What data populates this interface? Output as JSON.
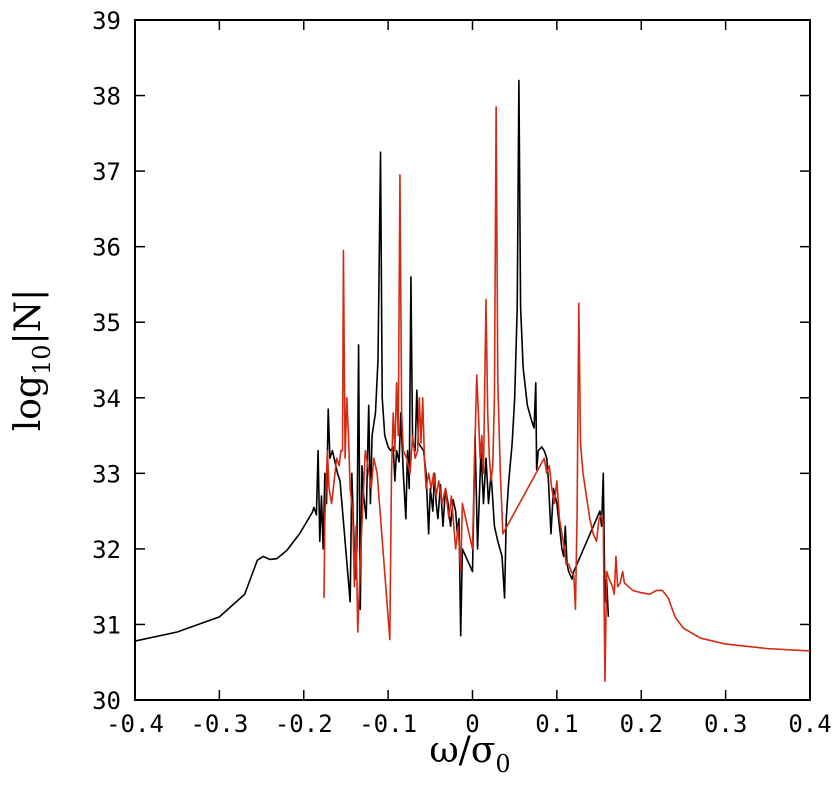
{
  "chart_data": {
    "type": "line",
    "xlabel": "ω/σ",
    "xlabel_subscript": "0",
    "ylabel_prefix": "log",
    "ylabel_subscript": "10",
    "ylabel_suffix": "|N|",
    "xlim": [
      -0.4,
      0.4
    ],
    "ylim": [
      30,
      39
    ],
    "x_ticks": [
      -0.4,
      -0.3,
      -0.2,
      -0.1,
      0,
      0.1,
      0.2,
      0.3,
      0.4
    ],
    "x_tick_labels": [
      "-0.4",
      "-0.3",
      "-0.2",
      "-0.1",
      "0",
      "0.1",
      "0.2",
      "0.3",
      "0.4"
    ],
    "y_ticks": [
      30,
      31,
      32,
      33,
      34,
      35,
      36,
      37,
      38,
      39
    ],
    "y_tick_labels": [
      "30",
      "31",
      "32",
      "33",
      "34",
      "35",
      "36",
      "37",
      "38",
      "39"
    ],
    "grid": false,
    "series": [
      {
        "color": "#000000",
        "points": [
          [
            -0.4,
            30.78
          ],
          [
            -0.35,
            30.9
          ],
          [
            -0.3,
            31.1
          ],
          [
            -0.27,
            31.4
          ],
          [
            -0.255,
            31.85
          ],
          [
            -0.248,
            31.9
          ],
          [
            -0.24,
            31.86
          ],
          [
            -0.232,
            31.87
          ],
          [
            -0.22,
            31.98
          ],
          [
            -0.205,
            32.2
          ],
          [
            -0.19,
            32.48
          ],
          [
            -0.188,
            32.55
          ],
          [
            -0.185,
            32.45
          ],
          [
            -0.183,
            33.3
          ],
          [
            -0.181,
            32.1
          ],
          [
            -0.179,
            32.7
          ],
          [
            -0.177,
            32.0
          ],
          [
            -0.175,
            33.0
          ],
          [
            -0.173,
            32.6
          ],
          [
            -0.171,
            33.85
          ],
          [
            -0.169,
            33.2
          ],
          [
            -0.166,
            33.3
          ],
          [
            -0.163,
            33.15
          ],
          [
            -0.16,
            33.0
          ],
          [
            -0.157,
            32.9
          ],
          [
            -0.145,
            31.3
          ],
          [
            -0.143,
            33.0
          ],
          [
            -0.141,
            32.3
          ],
          [
            -0.139,
            31.6
          ],
          [
            -0.137,
            32.0
          ],
          [
            -0.135,
            34.7
          ],
          [
            -0.133,
            31.2
          ],
          [
            -0.131,
            33.1
          ],
          [
            -0.129,
            32.7
          ],
          [
            -0.126,
            32.4
          ],
          [
            -0.123,
            33.9
          ],
          [
            -0.121,
            32.6
          ],
          [
            -0.119,
            33.5
          ],
          [
            -0.115,
            33.8
          ],
          [
            -0.112,
            34.5
          ],
          [
            -0.109,
            37.25
          ],
          [
            -0.107,
            34.0
          ],
          [
            -0.104,
            33.5
          ],
          [
            -0.1,
            33.35
          ],
          [
            -0.097,
            33.3
          ],
          [
            -0.094,
            33.35
          ],
          [
            -0.092,
            32.9
          ],
          [
            -0.09,
            33.3
          ],
          [
            -0.087,
            33.15
          ],
          [
            -0.085,
            33.8
          ],
          [
            -0.082,
            33.0
          ],
          [
            -0.079,
            32.4
          ],
          [
            -0.077,
            33.3
          ],
          [
            -0.075,
            32.8
          ],
          [
            -0.073,
            35.6
          ],
          [
            -0.071,
            33.4
          ],
          [
            -0.068,
            33.3
          ],
          [
            -0.066,
            34.1
          ],
          [
            -0.064,
            33.4
          ],
          [
            -0.061,
            33.35
          ],
          [
            -0.058,
            33.3
          ],
          [
            -0.055,
            33.0
          ],
          [
            -0.052,
            32.2
          ],
          [
            -0.05,
            32.8
          ],
          [
            -0.047,
            32.5
          ],
          [
            -0.045,
            33.0
          ],
          [
            -0.043,
            32.6
          ],
          [
            -0.041,
            32.4
          ],
          [
            -0.038,
            32.85
          ],
          [
            -0.035,
            32.3
          ],
          [
            -0.032,
            32.8
          ],
          [
            -0.029,
            32.6
          ],
          [
            -0.026,
            32.3
          ],
          [
            -0.023,
            32.65
          ],
          [
            -0.02,
            32.5
          ],
          [
            -0.018,
            32.2
          ],
          [
            -0.016,
            32.4
          ],
          [
            -0.014,
            30.85
          ],
          [
            -0.012,
            32.0
          ],
          [
            0.0,
            31.7
          ],
          [
            0.003,
            33.5
          ],
          [
            0.006,
            32.0
          ],
          [
            0.01,
            33.3
          ],
          [
            0.013,
            32.6
          ],
          [
            0.016,
            33.2
          ],
          [
            0.019,
            32.6
          ],
          [
            0.022,
            33.0
          ],
          [
            0.026,
            32.3
          ],
          [
            0.03,
            32.1
          ],
          [
            0.035,
            31.9
          ],
          [
            0.038,
            31.35
          ],
          [
            0.04,
            32.4
          ],
          [
            0.043,
            32.9
          ],
          [
            0.047,
            33.4
          ],
          [
            0.05,
            34.0
          ],
          [
            0.053,
            35.2
          ],
          [
            0.055,
            38.2
          ],
          [
            0.057,
            35.2
          ],
          [
            0.06,
            34.4
          ],
          [
            0.065,
            33.9
          ],
          [
            0.07,
            33.7
          ],
          [
            0.073,
            33.6
          ],
          [
            0.075,
            34.2
          ],
          [
            0.076,
            33.05
          ],
          [
            0.078,
            33.3
          ],
          [
            0.082,
            33.35
          ],
          [
            0.085,
            33.3
          ],
          [
            0.088,
            33.2
          ],
          [
            0.09,
            32.9
          ],
          [
            0.093,
            32.2
          ],
          [
            0.096,
            32.8
          ],
          [
            0.1,
            32.6
          ],
          [
            0.103,
            32.3
          ],
          [
            0.106,
            32.0
          ],
          [
            0.108,
            31.9
          ],
          [
            0.11,
            32.3
          ],
          [
            0.112,
            31.8
          ],
          [
            0.114,
            31.7
          ],
          [
            0.116,
            31.65
          ],
          [
            0.118,
            31.6
          ],
          [
            0.12,
            31.7
          ],
          [
            0.151,
            32.5
          ],
          [
            0.153,
            32.3
          ],
          [
            0.155,
            33.0
          ],
          [
            0.157,
            31.3
          ],
          [
            0.159,
            31.6
          ],
          [
            0.161,
            31.1
          ]
        ]
      },
      {
        "color": "#d42a12",
        "points": [
          [
            -0.176,
            31.35
          ],
          [
            -0.175,
            32.4
          ],
          [
            -0.172,
            33.3
          ],
          [
            -0.17,
            32.8
          ],
          [
            -0.167,
            32.6
          ],
          [
            -0.164,
            32.9
          ],
          [
            -0.161,
            33.2
          ],
          [
            -0.158,
            33.1
          ],
          [
            -0.156,
            33.3
          ],
          [
            -0.154,
            33.3
          ],
          [
            -0.153,
            35.95
          ],
          [
            -0.151,
            33.2
          ],
          [
            -0.149,
            34.0
          ],
          [
            -0.147,
            33.5
          ],
          [
            -0.145,
            32.8
          ],
          [
            -0.142,
            32.5
          ],
          [
            -0.14,
            31.5
          ],
          [
            -0.138,
            32.3
          ],
          [
            -0.136,
            30.9
          ],
          [
            -0.133,
            31.8
          ],
          [
            -0.13,
            32.6
          ],
          [
            -0.127,
            33.3
          ],
          [
            -0.124,
            33.1
          ],
          [
            -0.12,
            32.8
          ],
          [
            -0.117,
            33.2
          ],
          [
            -0.113,
            33.0
          ],
          [
            -0.098,
            30.8
          ],
          [
            -0.096,
            33.0
          ],
          [
            -0.094,
            33.8
          ],
          [
            -0.092,
            33.3
          ],
          [
            -0.09,
            34.2
          ],
          [
            -0.088,
            33.5
          ],
          [
            -0.086,
            36.95
          ],
          [
            -0.084,
            33.8
          ],
          [
            -0.082,
            33.3
          ],
          [
            -0.078,
            33.2
          ],
          [
            -0.074,
            33.0
          ],
          [
            -0.071,
            33.5
          ],
          [
            -0.068,
            33.2
          ],
          [
            -0.065,
            33.3
          ],
          [
            -0.063,
            34.0
          ],
          [
            -0.061,
            33.4
          ],
          [
            -0.059,
            34.0
          ],
          [
            -0.057,
            33.2
          ],
          [
            -0.055,
            32.8
          ],
          [
            -0.052,
            33.0
          ],
          [
            -0.049,
            32.8
          ],
          [
            -0.046,
            33.0
          ],
          [
            -0.043,
            32.7
          ],
          [
            -0.04,
            32.9
          ],
          [
            -0.036,
            32.6
          ],
          [
            -0.032,
            32.8
          ],
          [
            -0.028,
            32.4
          ],
          [
            -0.025,
            32.7
          ],
          [
            -0.02,
            32.0
          ],
          [
            -0.017,
            32.3
          ],
          [
            -0.014,
            31.7
          ],
          [
            -0.012,
            32.6
          ],
          [
            0.0,
            32.0
          ],
          [
            0.002,
            33.0
          ],
          [
            0.005,
            34.3
          ],
          [
            0.007,
            33.8
          ],
          [
            0.009,
            33.2
          ],
          [
            0.011,
            33.5
          ],
          [
            0.013,
            33.0
          ],
          [
            0.016,
            35.3
          ],
          [
            0.018,
            33.8
          ],
          [
            0.02,
            33.2
          ],
          [
            0.022,
            32.9
          ],
          [
            0.024,
            33.1
          ],
          [
            0.026,
            34.0
          ],
          [
            0.028,
            37.85
          ],
          [
            0.03,
            34.2
          ],
          [
            0.033,
            33.0
          ],
          [
            0.036,
            32.2
          ],
          [
            0.085,
            33.2
          ],
          [
            0.088,
            33.0
          ],
          [
            0.091,
            33.1
          ],
          [
            0.094,
            32.8
          ],
          [
            0.097,
            32.6
          ],
          [
            0.1,
            32.9
          ],
          [
            0.103,
            32.4
          ],
          [
            0.106,
            32.2
          ],
          [
            0.109,
            32.0
          ],
          [
            0.111,
            31.8
          ],
          [
            0.114,
            31.8
          ],
          [
            0.117,
            31.7
          ],
          [
            0.12,
            31.65
          ],
          [
            0.122,
            31.2
          ],
          [
            0.124,
            32.5
          ],
          [
            0.126,
            35.25
          ],
          [
            0.128,
            33.4
          ],
          [
            0.131,
            33.0
          ],
          [
            0.135,
            32.7
          ],
          [
            0.139,
            32.4
          ],
          [
            0.143,
            32.2
          ],
          [
            0.147,
            32.1
          ],
          [
            0.15,
            32.4
          ],
          [
            0.153,
            32.45
          ],
          [
            0.155,
            32.3
          ],
          [
            0.157,
            30.25
          ],
          [
            0.159,
            31.7
          ],
          [
            0.162,
            31.6
          ],
          [
            0.166,
            31.5
          ],
          [
            0.168,
            31.4
          ],
          [
            0.17,
            31.9
          ],
          [
            0.172,
            31.5
          ],
          [
            0.175,
            31.55
          ],
          [
            0.178,
            31.7
          ],
          [
            0.18,
            31.55
          ],
          [
            0.19,
            31.45
          ],
          [
            0.2,
            31.42
          ],
          [
            0.21,
            31.4
          ],
          [
            0.218,
            31.45
          ],
          [
            0.225,
            31.45
          ],
          [
            0.232,
            31.35
          ],
          [
            0.24,
            31.1
          ],
          [
            0.25,
            30.95
          ],
          [
            0.27,
            30.82
          ],
          [
            0.3,
            30.74
          ],
          [
            0.35,
            30.68
          ],
          [
            0.4,
            30.65
          ]
        ]
      }
    ]
  }
}
